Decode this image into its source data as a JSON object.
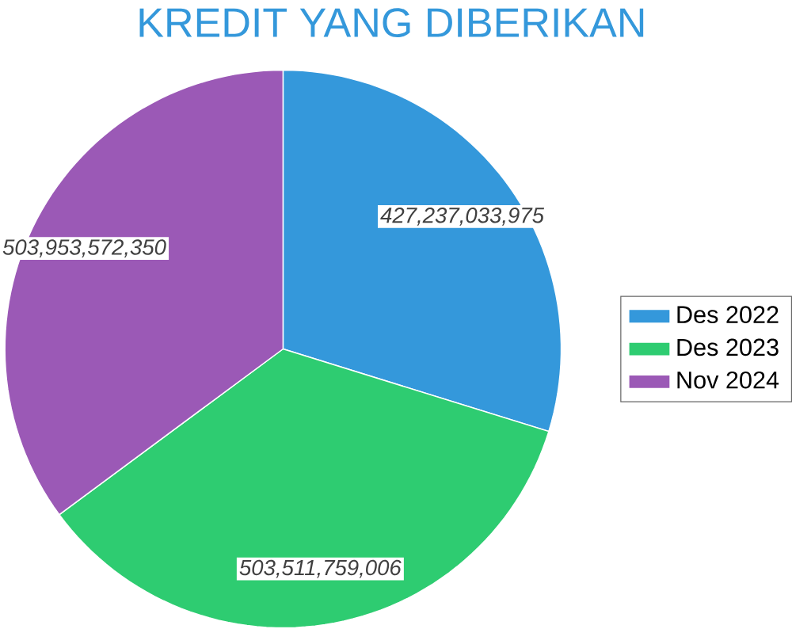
{
  "chart_data": {
    "type": "pie",
    "title": "KREDIT YANG DIBERIKAN",
    "categories": [
      "Des 2022",
      "Des 2023",
      "Nov 2024"
    ],
    "values": [
      427237033975,
      503511759006,
      503953572350
    ],
    "value_labels": [
      "427,237,033,975",
      "503,511,759,006",
      "503,953,572,350"
    ],
    "colors": [
      "#3498db",
      "#2ecc71",
      "#9b59b6"
    ],
    "legend": "right"
  }
}
